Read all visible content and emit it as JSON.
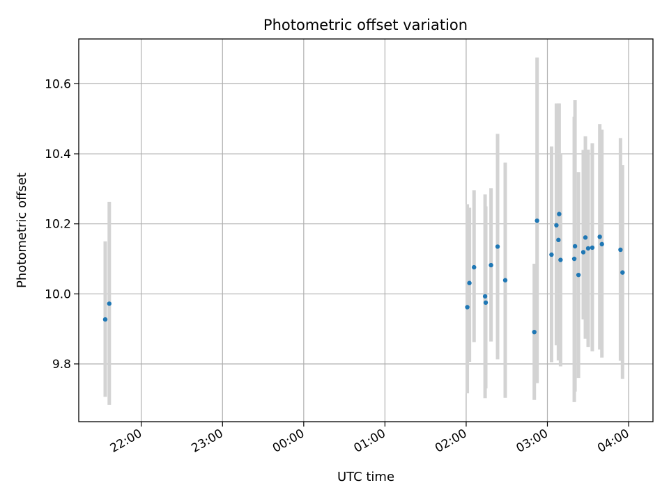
{
  "chart_data": {
    "type": "scatter",
    "title": "Photometric offset variation",
    "xlabel": "UTC time",
    "ylabel": "Photometric offset",
    "x_unit": "time_of_night_hours",
    "xlim": [
      21.23,
      28.3
    ],
    "ylim": [
      9.635,
      10.728
    ],
    "grid": true,
    "x_ticks": [
      {
        "value": 22,
        "label": "22:00"
      },
      {
        "value": 23,
        "label": "23:00"
      },
      {
        "value": 24,
        "label": "00:00"
      },
      {
        "value": 25,
        "label": "01:00"
      },
      {
        "value": 26,
        "label": "02:00"
      },
      {
        "value": 27,
        "label": "03:00"
      },
      {
        "value": 28,
        "label": "04:00"
      }
    ],
    "y_ticks": [
      {
        "value": 9.8,
        "label": "9.8"
      },
      {
        "value": 10.0,
        "label": "10.0"
      },
      {
        "value": 10.2,
        "label": "10.2"
      },
      {
        "value": 10.4,
        "label": "10.4"
      },
      {
        "value": 10.6,
        "label": "10.6"
      }
    ],
    "colors": {
      "point": "#1f77b4",
      "errorbar": "#d3d3d3",
      "grid": "#b0b0b0",
      "axes": "#000000"
    },
    "points": [
      {
        "x": 21.556,
        "y": 9.927,
        "ylo": 9.706,
        "yhi": 10.15
      },
      {
        "x": 21.606,
        "y": 9.972,
        "ylo": 9.683,
        "yhi": 10.263
      },
      {
        "x": 26.014,
        "y": 9.962,
        "ylo": 9.716,
        "yhi": 10.256
      },
      {
        "x": 26.04,
        "y": 10.031,
        "ylo": 9.806,
        "yhi": 10.246
      },
      {
        "x": 26.097,
        "y": 10.076,
        "ylo": 9.862,
        "yhi": 10.296
      },
      {
        "x": 26.233,
        "y": 9.993,
        "ylo": 9.702,
        "yhi": 10.284
      },
      {
        "x": 26.241,
        "y": 9.975,
        "ylo": 9.73,
        "yhi": 10.25
      },
      {
        "x": 26.306,
        "y": 10.082,
        "ylo": 9.864,
        "yhi": 10.302
      },
      {
        "x": 26.387,
        "y": 10.135,
        "ylo": 9.813,
        "yhi": 10.457
      },
      {
        "x": 26.481,
        "y": 10.039,
        "ylo": 9.703,
        "yhi": 10.375
      },
      {
        "x": 26.839,
        "y": 9.891,
        "ylo": 9.697,
        "yhi": 10.086
      },
      {
        "x": 26.873,
        "y": 10.209,
        "ylo": 9.745,
        "yhi": 10.675
      },
      {
        "x": 27.051,
        "y": 10.112,
        "ylo": 9.805,
        "yhi": 10.421
      },
      {
        "x": 27.111,
        "y": 10.196,
        "ylo": 9.853,
        "yhi": 10.544
      },
      {
        "x": 27.136,
        "y": 10.154,
        "ylo": 9.81,
        "yhi": 10.544
      },
      {
        "x": 27.145,
        "y": 10.228,
        "ylo": 9.905,
        "yhi": 10.544
      },
      {
        "x": 27.162,
        "y": 10.097,
        "ylo": 9.793,
        "yhi": 10.4
      },
      {
        "x": 27.331,
        "y": 10.1,
        "ylo": 9.691,
        "yhi": 10.506
      },
      {
        "x": 27.34,
        "y": 10.136,
        "ylo": 9.721,
        "yhi": 10.553
      },
      {
        "x": 27.383,
        "y": 10.054,
        "ylo": 9.76,
        "yhi": 10.348
      },
      {
        "x": 27.442,
        "y": 10.119,
        "ylo": 9.927,
        "yhi": 10.411
      },
      {
        "x": 27.468,
        "y": 10.161,
        "ylo": 9.872,
        "yhi": 10.45
      },
      {
        "x": 27.502,
        "y": 10.13,
        "ylo": 9.848,
        "yhi": 10.412
      },
      {
        "x": 27.553,
        "y": 10.132,
        "ylo": 9.836,
        "yhi": 10.43
      },
      {
        "x": 27.645,
        "y": 10.163,
        "ylo": 9.841,
        "yhi": 10.485
      },
      {
        "x": 27.671,
        "y": 10.142,
        "ylo": 9.818,
        "yhi": 10.469
      },
      {
        "x": 27.9,
        "y": 10.126,
        "ylo": 9.809,
        "yhi": 10.445
      },
      {
        "x": 27.925,
        "y": 10.061,
        "ylo": 9.757,
        "yhi": 10.368
      }
    ]
  }
}
